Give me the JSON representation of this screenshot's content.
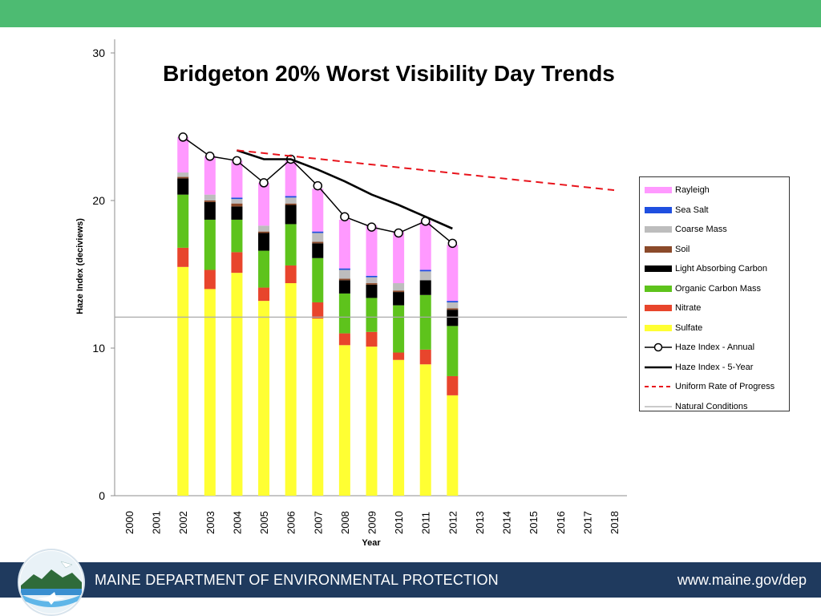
{
  "header": {
    "bar_color": "#4dbb72"
  },
  "chart_data": {
    "type": "bar",
    "title": "Bridgeton 20% Worst Visibility Day Trends",
    "xlabel": "Year",
    "ylabel": "Haze Index (deciviews)",
    "ylim": [
      0,
      31
    ],
    "yticks": [
      0,
      10,
      20,
      30
    ],
    "categories": [
      "2000",
      "2001",
      "2002",
      "2003",
      "2004",
      "2005",
      "2006",
      "2007",
      "2008",
      "2009",
      "2010",
      "2011",
      "2012",
      "2013",
      "2014",
      "2015",
      "2016",
      "2017",
      "2018"
    ],
    "stacked": true,
    "grid": false,
    "legend_position": "right",
    "series": [
      {
        "name": "Sulfate",
        "color": "#ffff33",
        "values": [
          null,
          null,
          15.5,
          14.0,
          15.1,
          13.2,
          14.4,
          12.0,
          10.2,
          10.1,
          9.2,
          8.9,
          6.8,
          null,
          null,
          null,
          null,
          null,
          null
        ]
      },
      {
        "name": "Nitrate",
        "color": "#e8452c",
        "values": [
          null,
          null,
          1.3,
          1.3,
          1.4,
          0.9,
          1.2,
          1.1,
          0.8,
          1.0,
          0.5,
          1.0,
          1.3,
          null,
          null,
          null,
          null,
          null,
          null
        ]
      },
      {
        "name": "Organic Carbon Mass",
        "color": "#5ec31c",
        "values": [
          null,
          null,
          3.6,
          3.4,
          2.2,
          2.5,
          2.8,
          3.0,
          2.7,
          2.3,
          3.2,
          3.7,
          3.4,
          null,
          null,
          null,
          null,
          null,
          null
        ]
      },
      {
        "name": "Light Absorbing Carbon",
        "color": "#000000",
        "values": [
          null,
          null,
          1.1,
          1.2,
          0.9,
          1.2,
          1.3,
          1.0,
          0.9,
          0.9,
          0.9,
          1.0,
          1.1,
          null,
          null,
          null,
          null,
          null,
          null
        ]
      },
      {
        "name": "Soil",
        "color": "#8b4a2a",
        "values": [
          null,
          null,
          0.1,
          0.1,
          0.2,
          0.1,
          0.1,
          0.1,
          0.1,
          0.1,
          0.1,
          0.0,
          0.1,
          null,
          null,
          null,
          null,
          null,
          null
        ]
      },
      {
        "name": "Coarse Mass",
        "color": "#bdbdbd",
        "values": [
          null,
          null,
          0.3,
          0.4,
          0.3,
          0.4,
          0.4,
          0.6,
          0.6,
          0.4,
          0.5,
          0.6,
          0.4,
          null,
          null,
          null,
          null,
          null,
          null
        ]
      },
      {
        "name": "Sea Salt",
        "color": "#1f4fe0",
        "values": [
          null,
          null,
          0.0,
          0.0,
          0.1,
          0.0,
          0.1,
          0.1,
          0.1,
          0.1,
          0.0,
          0.1,
          0.1,
          null,
          null,
          null,
          null,
          null,
          null
        ]
      },
      {
        "name": "Rayleigh",
        "color": "#ff99ff",
        "values": [
          null,
          null,
          2.4,
          2.6,
          2.5,
          2.9,
          2.4,
          2.9,
          3.3,
          3.4,
          3.5,
          3.3,
          3.8,
          null,
          null,
          null,
          null,
          null,
          null
        ]
      }
    ],
    "lines": [
      {
        "name": "Haze Index - Annual",
        "color": "#000000",
        "marker": "open-circle",
        "values": [
          null,
          null,
          24.3,
          23.0,
          22.7,
          21.2,
          22.8,
          21.0,
          18.9,
          18.2,
          17.8,
          18.6,
          17.1,
          null,
          null,
          null,
          null,
          null,
          null
        ]
      },
      {
        "name": "Haze Index - 5-Year",
        "color": "#000000",
        "marker": "none",
        "values": [
          null,
          null,
          null,
          null,
          23.4,
          22.8,
          22.8,
          22.1,
          21.3,
          20.4,
          19.7,
          18.9,
          18.1,
          null,
          null,
          null,
          null,
          null,
          null
        ]
      },
      {
        "name": "Uniform Rate of Progress",
        "color": "#e8141c",
        "dashed": true,
        "x": [
          "2004",
          "2018"
        ],
        "values": [
          23.4,
          20.7
        ]
      },
      {
        "name": "Natural Conditions",
        "color": "#aaaaaa",
        "horizontal": true,
        "value": 12.1
      }
    ],
    "legend_order": [
      "Rayleigh",
      "Sea Salt",
      "Coarse Mass",
      "Soil",
      "Light Absorbing Carbon",
      "Organic Carbon Mass",
      "Nitrate",
      "Sulfate",
      "Haze Index - Annual",
      "Haze Index - 5-Year",
      "Uniform Rate of Progress",
      "Natural Conditions"
    ]
  },
  "footer": {
    "organization": "MAINE DEPARTMENT OF ENVIRONMENTAL PROTECTION",
    "url": "www.maine.gov/dep",
    "bar_color": "#1f3a5e"
  }
}
